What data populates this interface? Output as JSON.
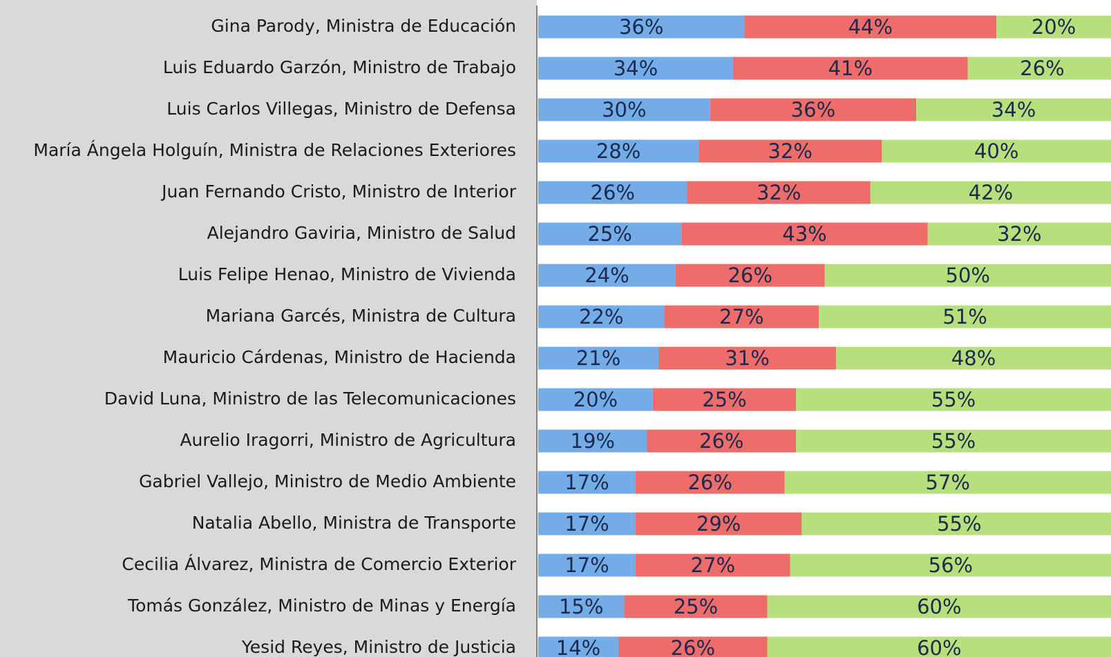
{
  "chart_data": {
    "type": "bar",
    "orientation": "horizontal",
    "stacked": true,
    "categories": [
      "Gina Parody, Ministra de Educación",
      "Luis Eduardo Garzón, Ministro de Trabajo",
      "Luis Carlos Villegas, Ministro de Defensa",
      "María Ángela Holguín, Ministra de Relaciones Exteriores",
      "Juan Fernando Cristo, Ministro de Interior",
      "Alejandro Gaviria, Ministro de Salud",
      "Luis Felipe Henao, Ministro de Vivienda",
      "Mariana Garcés, Ministra de Cultura",
      "Mauricio Cárdenas, Ministro de Hacienda",
      "David Luna, Ministro de las Telecomunicaciones",
      "Aurelio Iragorri, Ministro de Agricultura",
      "Gabriel Vallejo, Ministro de Medio Ambiente",
      "Natalia Abello, Ministra de Transporte",
      "Cecilia Álvarez, Ministra de Comercio Exterior",
      "Tomás González, Ministro de Minas y Energía",
      "Yesid Reyes, Ministro de Justicia"
    ],
    "xlim": [
      0,
      100
    ],
    "series": [
      {
        "color": "#74ace8",
        "values": [
          36,
          34,
          30,
          28,
          26,
          25,
          24,
          22,
          21,
          20,
          19,
          17,
          17,
          17,
          15,
          14
        ],
        "value_labels": [
          "36%",
          "34%",
          "30%",
          "28%",
          "26%",
          "25%",
          "24%",
          "22%",
          "21%",
          "20%",
          "19%",
          "17%",
          "17%",
          "17%",
          "15%",
          "14%"
        ]
      },
      {
        "color": "#ee6c6a",
        "values": [
          44,
          41,
          36,
          32,
          32,
          43,
          26,
          27,
          31,
          25,
          26,
          26,
          29,
          27,
          25,
          26
        ],
        "value_labels": [
          "44%",
          "41%",
          "36%",
          "32%",
          "32%",
          "43%",
          "26%",
          "27%",
          "31%",
          "25%",
          "26%",
          "26%",
          "29%",
          "27%",
          "25%",
          "26%"
        ]
      },
      {
        "color": "#b7e07c",
        "values": [
          20,
          26,
          34,
          40,
          42,
          32,
          50,
          51,
          48,
          55,
          55,
          57,
          55,
          56,
          60,
          60
        ],
        "value_labels": [
          "20%",
          "26%",
          "34%",
          "40%",
          "42%",
          "32%",
          "50%",
          "51%",
          "48%",
          "55%",
          "55%",
          "57%",
          "55%",
          "56%",
          "60%",
          "60%"
        ]
      }
    ]
  }
}
